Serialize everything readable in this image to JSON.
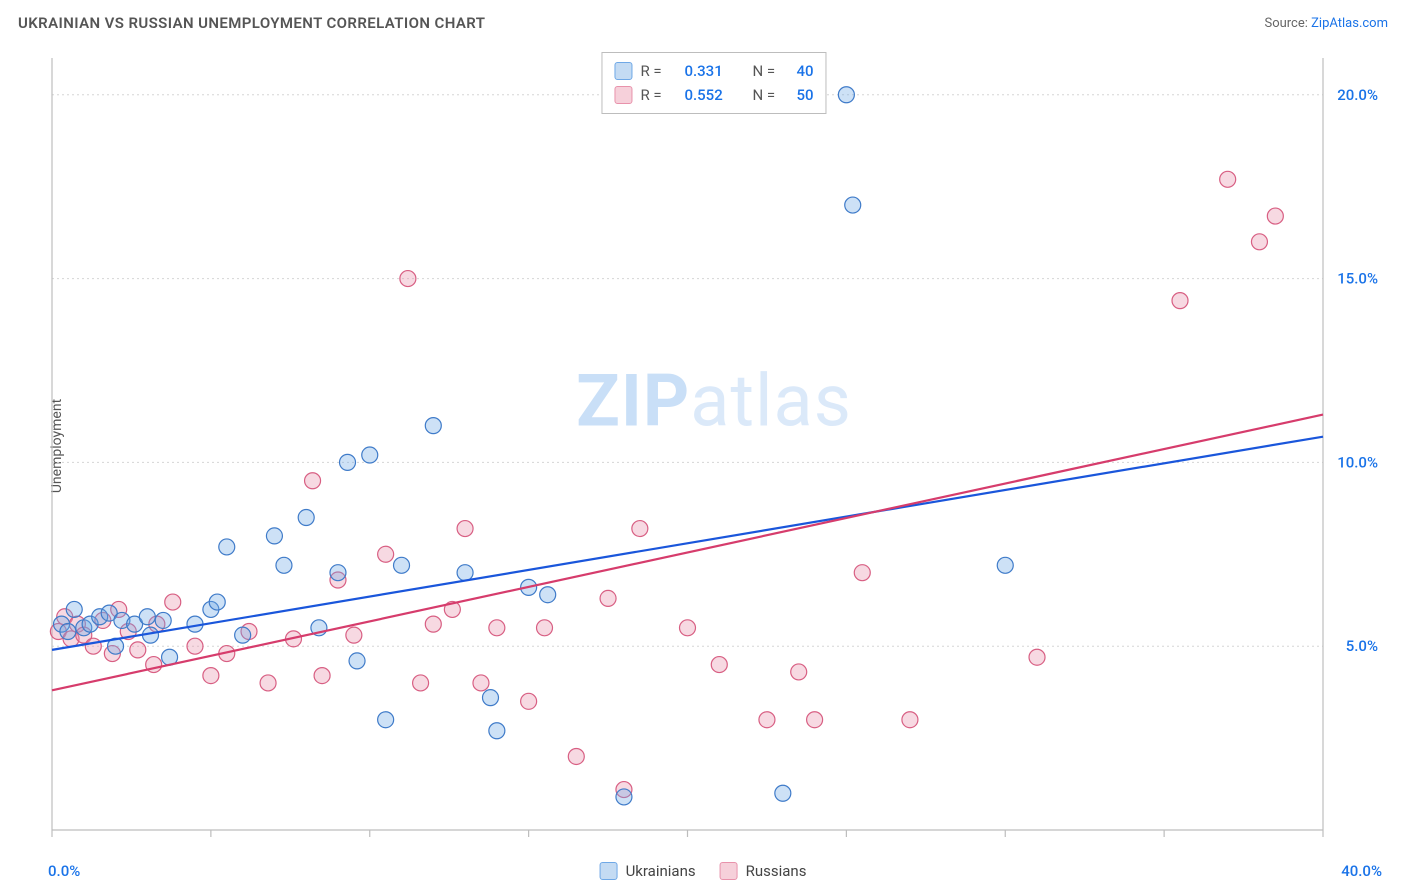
{
  "chart": {
    "type": "scatter",
    "title": "UKRAINIAN VS RUSSIAN UNEMPLOYMENT CORRELATION CHART",
    "source_prefix": "Source: ",
    "source_link": "ZipAtlas.com",
    "ylabel": "Unemployment",
    "watermark_bold": "ZIP",
    "watermark_light": "atlas",
    "background_color": "#ffffff",
    "grid_color": "#d5d5d5",
    "grid_dash": "2,3",
    "axis_color": "#bdbdbd",
    "tick_color": "#bdbdbd",
    "marker_radius": 8,
    "marker_stroke_width": 1.2,
    "marker_fill_opacity": 0.35,
    "trend_line_width": 2.2,
    "xaxis": {
      "min": 0,
      "max": 40,
      "min_label": "0.0%",
      "max_label": "40.0%",
      "tick_step": 5
    },
    "yaxis": {
      "min": 0,
      "max": 21,
      "ticks": [
        5,
        10,
        15,
        20
      ],
      "tick_labels": [
        "5.0%",
        "10.0%",
        "15.0%",
        "20.0%"
      ],
      "tick_label_color": "#1a73e8",
      "tick_label_fontsize": 15
    },
    "legend_top": {
      "border_color": "#bdbdbd",
      "rows": [
        {
          "swatch_fill": "#c4dbf3",
          "swatch_stroke": "#6fa8e6",
          "r_label": "R =",
          "r_value": "0.331",
          "n_label": "N =",
          "n_value": "40"
        },
        {
          "swatch_fill": "#f6d0da",
          "swatch_stroke": "#e892ab",
          "r_label": "R =",
          "r_value": "0.552",
          "n_label": "N =",
          "n_value": "50"
        }
      ]
    },
    "series": [
      {
        "name": "Ukrainians",
        "marker_fill": "#6fa8e6",
        "marker_stroke": "#3f7bc9",
        "swatch_fill": "#c4dbf3",
        "swatch_stroke": "#6fa8e6",
        "trend_color": "#1a56db",
        "trend_y_at_x0": 4.9,
        "trend_y_at_xmax": 10.7,
        "points": [
          [
            0.3,
            5.6
          ],
          [
            0.5,
            5.4
          ],
          [
            0.7,
            6.0
          ],
          [
            1.0,
            5.5
          ],
          [
            1.2,
            5.6
          ],
          [
            1.5,
            5.8
          ],
          [
            1.8,
            5.9
          ],
          [
            2.0,
            5.0
          ],
          [
            2.2,
            5.7
          ],
          [
            2.6,
            5.6
          ],
          [
            3.0,
            5.8
          ],
          [
            3.1,
            5.3
          ],
          [
            3.5,
            5.7
          ],
          [
            3.7,
            4.7
          ],
          [
            4.5,
            5.6
          ],
          [
            5.0,
            6.0
          ],
          [
            5.2,
            6.2
          ],
          [
            5.5,
            7.7
          ],
          [
            6.0,
            5.3
          ],
          [
            7.0,
            8.0
          ],
          [
            7.3,
            7.2
          ],
          [
            8.0,
            8.5
          ],
          [
            8.4,
            5.5
          ],
          [
            9.0,
            7.0
          ],
          [
            9.3,
            10.0
          ],
          [
            9.6,
            4.6
          ],
          [
            10.0,
            10.2
          ],
          [
            10.5,
            3.0
          ],
          [
            11.0,
            7.2
          ],
          [
            12.0,
            11.0
          ],
          [
            13.0,
            7.0
          ],
          [
            13.8,
            3.6
          ],
          [
            14.0,
            2.7
          ],
          [
            15.0,
            6.6
          ],
          [
            15.6,
            6.4
          ],
          [
            18.0,
            0.9
          ],
          [
            23.0,
            1.0
          ],
          [
            25.0,
            20.0
          ],
          [
            25.2,
            17.0
          ],
          [
            30.0,
            7.2
          ]
        ]
      },
      {
        "name": "Russians",
        "marker_fill": "#e892ab",
        "marker_stroke": "#d85f83",
        "swatch_fill": "#f6d0da",
        "swatch_stroke": "#e892ab",
        "trend_color": "#d63c6c",
        "trend_y_at_x0": 3.8,
        "trend_y_at_xmax": 11.3,
        "points": [
          [
            0.2,
            5.4
          ],
          [
            0.4,
            5.8
          ],
          [
            0.6,
            5.2
          ],
          [
            0.8,
            5.6
          ],
          [
            1.0,
            5.3
          ],
          [
            1.3,
            5.0
          ],
          [
            1.6,
            5.7
          ],
          [
            1.9,
            4.8
          ],
          [
            2.1,
            6.0
          ],
          [
            2.4,
            5.4
          ],
          [
            2.7,
            4.9
          ],
          [
            3.2,
            4.5
          ],
          [
            3.3,
            5.6
          ],
          [
            3.8,
            6.2
          ],
          [
            4.5,
            5.0
          ],
          [
            5.0,
            4.2
          ],
          [
            5.5,
            4.8
          ],
          [
            6.2,
            5.4
          ],
          [
            6.8,
            4.0
          ],
          [
            7.6,
            5.2
          ],
          [
            8.2,
            9.5
          ],
          [
            8.5,
            4.2
          ],
          [
            9.0,
            6.8
          ],
          [
            9.5,
            5.3
          ],
          [
            10.5,
            7.5
          ],
          [
            11.2,
            15.0
          ],
          [
            11.6,
            4.0
          ],
          [
            12.0,
            5.6
          ],
          [
            12.6,
            6.0
          ],
          [
            13.0,
            8.2
          ],
          [
            13.5,
            4.0
          ],
          [
            14.0,
            5.5
          ],
          [
            15.0,
            3.5
          ],
          [
            15.5,
            5.5
          ],
          [
            16.5,
            2.0
          ],
          [
            17.5,
            6.3
          ],
          [
            18.0,
            1.1
          ],
          [
            18.5,
            8.2
          ],
          [
            20.0,
            5.5
          ],
          [
            21.0,
            4.5
          ],
          [
            22.5,
            3.0
          ],
          [
            23.5,
            4.3
          ],
          [
            24.0,
            3.0
          ],
          [
            27.0,
            3.0
          ],
          [
            31.0,
            4.7
          ],
          [
            35.5,
            14.4
          ],
          [
            37.0,
            17.7
          ],
          [
            38.0,
            16.0
          ],
          [
            38.5,
            16.7
          ],
          [
            25.5,
            7.0
          ]
        ]
      }
    ]
  }
}
